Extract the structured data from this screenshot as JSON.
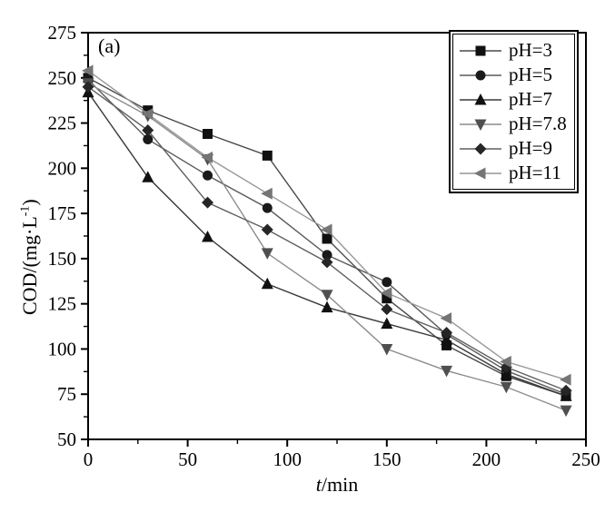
{
  "figure": {
    "panel_label": "(a)",
    "background": "#ffffff",
    "frame_color": "#000000"
  },
  "axis_titles": {
    "ylabel_prefix": "COD/(mg·L",
    "ylabel_sup": "-1",
    "ylabel_suffix": ")",
    "xlabel_italic": "t",
    "xlabel_rest": "/min"
  },
  "chart_data": {
    "type": "line",
    "title": "",
    "xlabel": "t/min",
    "ylabel": "COD/(mg·L-1)",
    "xlim": [
      0,
      250
    ],
    "ylim": [
      50,
      275
    ],
    "x_ticks": [
      0,
      50,
      100,
      150,
      200,
      250
    ],
    "x_minor_ticks": [
      25,
      75,
      125,
      175,
      225
    ],
    "y_ticks": [
      275,
      250,
      225,
      200,
      175,
      150,
      125,
      100,
      75,
      50
    ],
    "y_minor_ticks": [
      262.5,
      237.5,
      212.5,
      187.5,
      162.5,
      137.5,
      112.5,
      87.5,
      62.5
    ],
    "grid": false,
    "legend_position": "top-right",
    "x": [
      0,
      30,
      60,
      90,
      120,
      150,
      180,
      210,
      240
    ],
    "series": [
      {
        "name": "pH=3",
        "marker": "square",
        "marker_color": "#111111",
        "line_color": "#4a4a4a",
        "values": [
          250,
          232,
          219,
          207,
          161,
          128,
          102,
          85,
          74
        ]
      },
      {
        "name": "pH=5",
        "marker": "circle",
        "marker_color": "#1a1a1a",
        "line_color": "#5a5a5a",
        "values": [
          249,
          216,
          196,
          178,
          152,
          137,
          108,
          88,
          75
        ]
      },
      {
        "name": "pH=7",
        "marker": "triangle-up",
        "marker_color": "#111111",
        "line_color": "#383838",
        "values": [
          242,
          195,
          162,
          136,
          123,
          114,
          105,
          86,
          74
        ]
      },
      {
        "name": "pH=7.8",
        "marker": "triangle-down",
        "marker_color": "#4f4f4f",
        "line_color": "#8c8c8c",
        "values": [
          247,
          229,
          205,
          153,
          130,
          100,
          88,
          79,
          66
        ]
      },
      {
        "name": "pH=9",
        "marker": "diamond",
        "marker_color": "#262626",
        "line_color": "#5f5f5f",
        "values": [
          245,
          221,
          181,
          166,
          148,
          122,
          109,
          90,
          77
        ]
      },
      {
        "name": "pH=11",
        "marker": "triangle-left",
        "marker_color": "#757575",
        "line_color": "#979797",
        "values": [
          254,
          230,
          206,
          186,
          166,
          131,
          117,
          93,
          83
        ]
      }
    ]
  }
}
